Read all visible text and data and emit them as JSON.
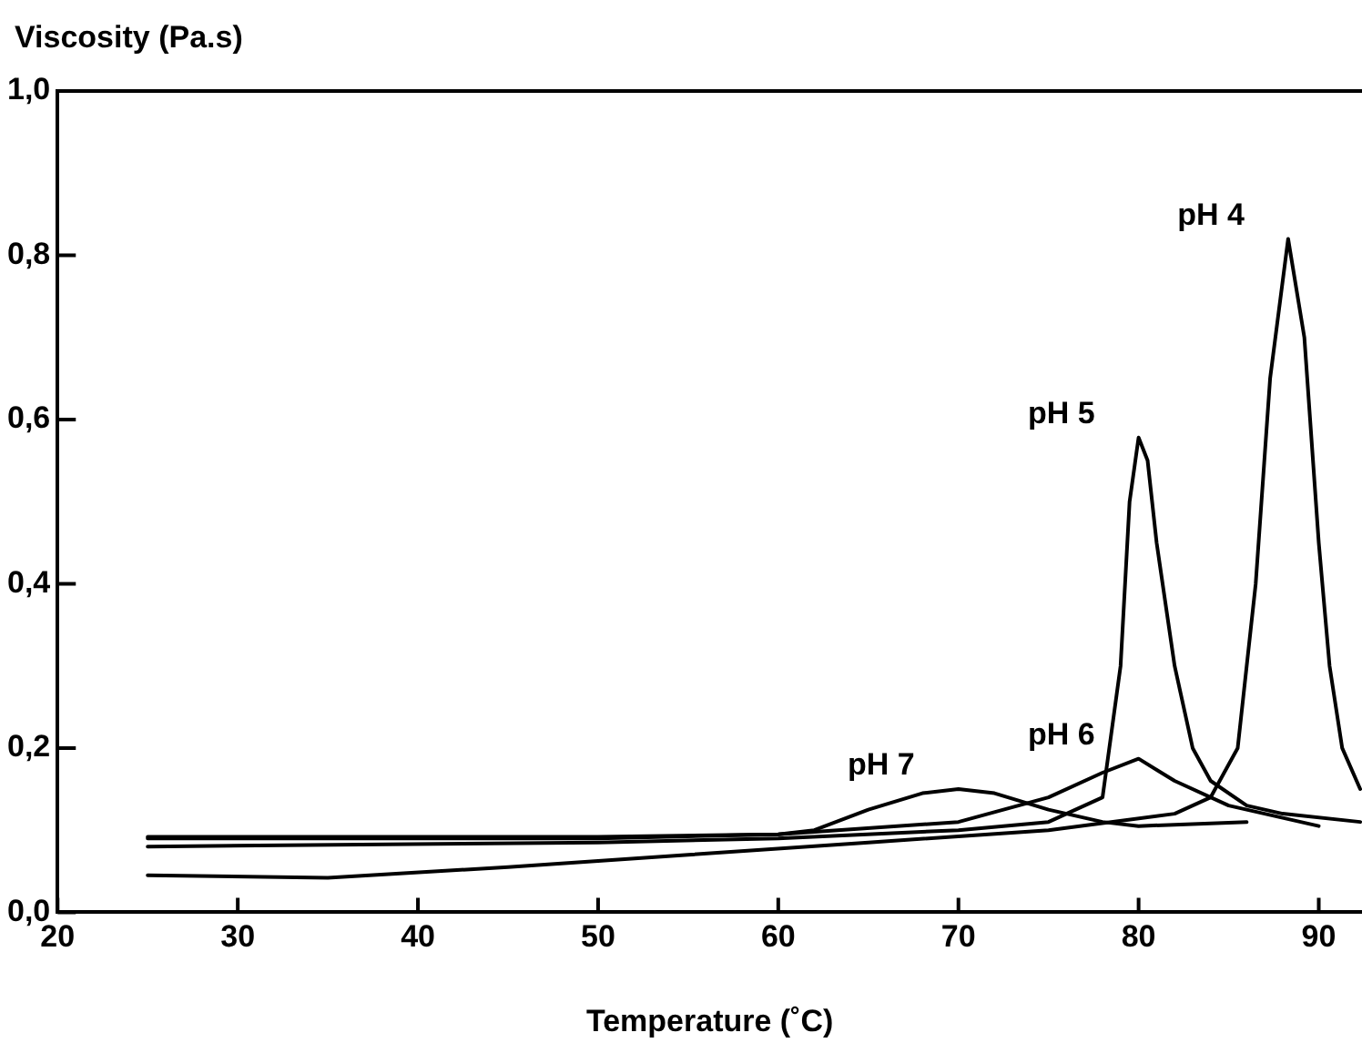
{
  "chart_data": {
    "type": "line",
    "xlabel": "Temperature (˚C)",
    "ylabel": "Viscosity (Pa.s)",
    "xlim": [
      20,
      92.4
    ],
    "xticks": [
      20,
      30,
      40,
      50,
      60,
      70,
      80,
      90
    ],
    "ylim": [
      0,
      1
    ],
    "yticks": [
      {
        "value": 0,
        "label": "0,0"
      },
      {
        "value": 0.2,
        "label": "0,2"
      },
      {
        "value": 0.4,
        "label": "0,4"
      },
      {
        "value": 0.6,
        "label": "0,6"
      },
      {
        "value": 0.8,
        "label": "0,8"
      },
      {
        "value": 1,
        "label": "1,0"
      }
    ],
    "grid": false,
    "legend": false,
    "marker": "none",
    "line_style": "solid",
    "series": [
      {
        "name": "pH 4",
        "color": "#000000",
        "x": [
          25,
          35,
          45,
          55,
          65,
          75,
          82,
          84,
          85.5,
          86.5,
          87.3,
          88.3,
          89.2,
          90,
          90.6,
          91.3,
          92.3
        ],
        "values": [
          0.045,
          0.042,
          0.055,
          0.07,
          0.085,
          0.1,
          0.12,
          0.14,
          0.2,
          0.4,
          0.65,
          0.82,
          0.7,
          0.45,
          0.3,
          0.2,
          0.15
        ]
      },
      {
        "name": "pH 5",
        "color": "#000000",
        "x": [
          25,
          50,
          60,
          70,
          75,
          78,
          79,
          79.5,
          80,
          80.5,
          81,
          82,
          83,
          84,
          86,
          88,
          92.3
        ],
        "values": [
          0.08,
          0.085,
          0.09,
          0.1,
          0.11,
          0.14,
          0.3,
          0.5,
          0.578,
          0.55,
          0.45,
          0.3,
          0.2,
          0.16,
          0.13,
          0.12,
          0.11
        ]
      },
      {
        "name": "pH 6",
        "color": "#000000",
        "x": [
          25,
          50,
          60,
          70,
          75,
          78,
          80,
          82,
          85,
          90
        ],
        "values": [
          0.09,
          0.09,
          0.095,
          0.11,
          0.14,
          0.17,
          0.187,
          0.16,
          0.13,
          0.105
        ]
      },
      {
        "name": "pH 7",
        "color": "#000000",
        "x": [
          25,
          50,
          60,
          62,
          65,
          68,
          70,
          72,
          75,
          78,
          80,
          86
        ],
        "values": [
          0.092,
          0.092,
          0.095,
          0.1,
          0.125,
          0.145,
          0.15,
          0.145,
          0.125,
          0.11,
          0.105,
          0.11
        ]
      }
    ]
  }
}
